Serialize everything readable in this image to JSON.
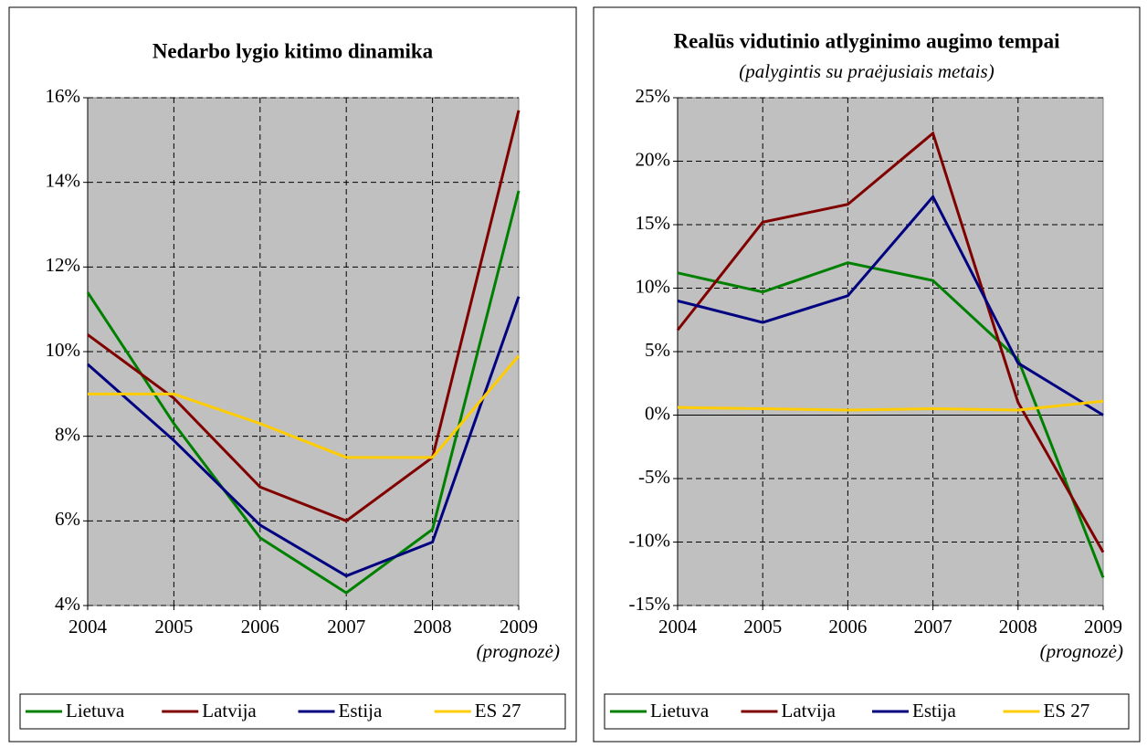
{
  "chart_data": [
    {
      "type": "line",
      "title": "Nedarbo lygio kitimo dinamika",
      "categories": [
        "2004",
        "2005",
        "2006",
        "2007",
        "2008",
        "2009"
      ],
      "annotation": "(prognozė)",
      "ylim": [
        4,
        16
      ],
      "yticks": [
        {
          "value": 4,
          "label": "4%"
        },
        {
          "value": 6,
          "label": "6%"
        },
        {
          "value": 8,
          "label": "8%"
        },
        {
          "value": 10,
          "label": "10%"
        },
        {
          "value": 12,
          "label": "12%"
        },
        {
          "value": 14,
          "label": "14%"
        },
        {
          "value": 16,
          "label": "16%"
        }
      ],
      "grid": true,
      "series": [
        {
          "name": "Lietuva",
          "color": "#008000",
          "values": [
            11.4,
            8.3,
            5.6,
            4.3,
            5.8,
            13.8
          ]
        },
        {
          "name": "Latvija",
          "color": "#800000",
          "values": [
            10.4,
            8.9,
            6.8,
            6.0,
            7.5,
            15.7
          ]
        },
        {
          "name": "Estija",
          "color": "#000080",
          "values": [
            9.7,
            7.9,
            5.9,
            4.7,
            5.5,
            11.3
          ]
        },
        {
          "name": "ES 27",
          "color": "#ffcc00",
          "values": [
            9.0,
            9.0,
            8.3,
            7.5,
            7.5,
            9.9
          ]
        }
      ]
    },
    {
      "type": "line",
      "title": "Realūs vidutinio atlyginimo augimo tempai",
      "subtitle": "(palygintis su praėjusiais metais)",
      "categories": [
        "2004",
        "2005",
        "2006",
        "2007",
        "2008",
        "2009"
      ],
      "annotation": "(prognozė)",
      "ylim": [
        -15,
        25
      ],
      "yticks": [
        {
          "value": -15,
          "label": "-15%"
        },
        {
          "value": -10,
          "label": "-10%"
        },
        {
          "value": -5,
          "label": "-5%"
        },
        {
          "value": 0,
          "label": "0%"
        },
        {
          "value": 5,
          "label": "5%"
        },
        {
          "value": 10,
          "label": "10%"
        },
        {
          "value": 15,
          "label": "15%"
        },
        {
          "value": 20,
          "label": "20%"
        },
        {
          "value": 25,
          "label": "25%"
        }
      ],
      "grid": true,
      "series": [
        {
          "name": "Lietuva",
          "color": "#008000",
          "values": [
            11.2,
            9.7,
            12.0,
            10.6,
            4.4,
            -12.8
          ]
        },
        {
          "name": "Latvija",
          "color": "#800000",
          "values": [
            6.7,
            15.2,
            16.6,
            22.2,
            1.0,
            -10.8
          ]
        },
        {
          "name": "Estija",
          "color": "#000080",
          "values": [
            9.0,
            7.3,
            9.4,
            17.2,
            4.1,
            0.0
          ]
        },
        {
          "name": "ES 27",
          "color": "#ffcc00",
          "values": [
            0.6,
            0.5,
            0.4,
            0.5,
            0.4,
            1.1
          ]
        }
      ]
    }
  ]
}
